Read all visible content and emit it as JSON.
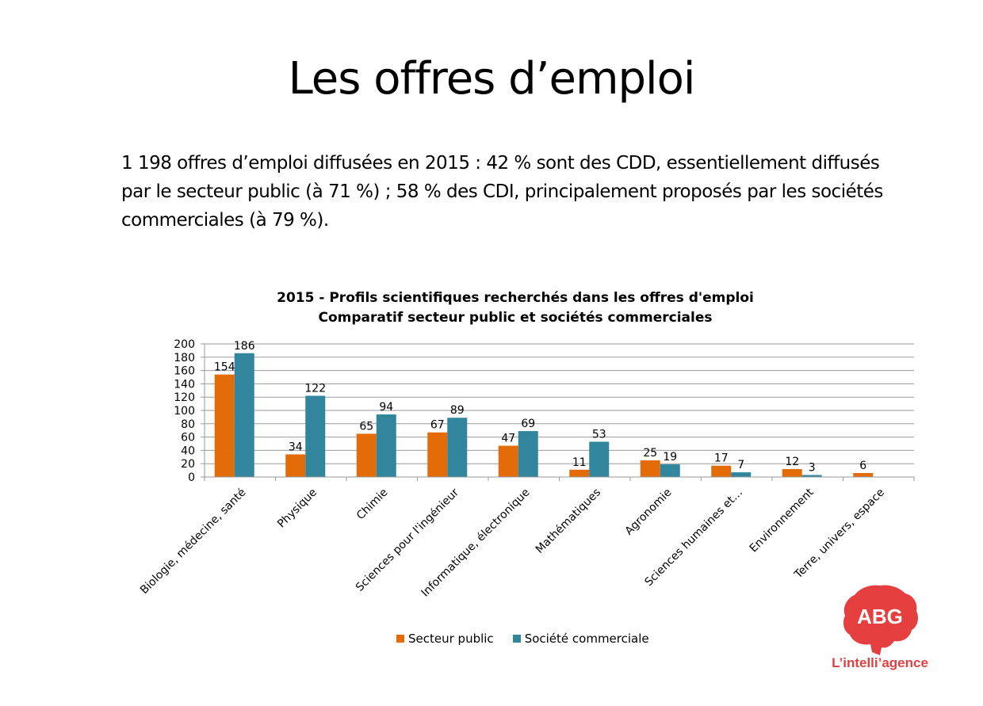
{
  "slide": {
    "title": "Les offres d’emploi",
    "text_lines": [
      "1 198 offres d’emploi diffusées en 2015 : 42 % sont des CDD, essentiellement diffusés",
      "par le secteur public (à 71 %) ; 58 % des CDI, principalement proposés par les sociétés",
      "commerciales (à 79 %)."
    ]
  },
  "logo": {
    "name": "ABG",
    "tagline": "L’intelli’agence",
    "color": "#e63f3f"
  },
  "chart_data": {
    "type": "bar",
    "title": "2015 - Profils scientifiques recherchés dans les offres d'emploi",
    "subtitle": "Comparatif secteur public et sociétés commerciales",
    "categories": [
      "Biologie, médecine, santé",
      "Physique",
      "Chimie",
      "Sciences pour l'ingénieur",
      "Informatique, électronique",
      "Mathématiques",
      "Agronomie",
      "Sciences humaines et…",
      "Environnement",
      "Terre, univers, espace"
    ],
    "series": [
      {
        "name": "Secteur public",
        "color": "#e36c09",
        "values": [
          154,
          34,
          65,
          67,
          47,
          11,
          25,
          17,
          12,
          6
        ]
      },
      {
        "name": "Société commerciale",
        "color": "#31859c",
        "values": [
          186,
          122,
          94,
          89,
          69,
          53,
          19,
          7,
          3,
          0
        ]
      }
    ],
    "data_labels": [
      [
        "154",
        "34",
        "65",
        "67",
        "47",
        "11",
        "25",
        "17",
        "12",
        "6"
      ],
      [
        "186",
        "122",
        "94",
        "89",
        "69",
        "53",
        "19",
        "7",
        "3",
        ""
      ]
    ],
    "ylim": [
      0,
      200
    ],
    "yticks": [
      0,
      20,
      40,
      60,
      80,
      100,
      120,
      140,
      160,
      180,
      200
    ],
    "grid": true,
    "legend_position": "bottom"
  }
}
